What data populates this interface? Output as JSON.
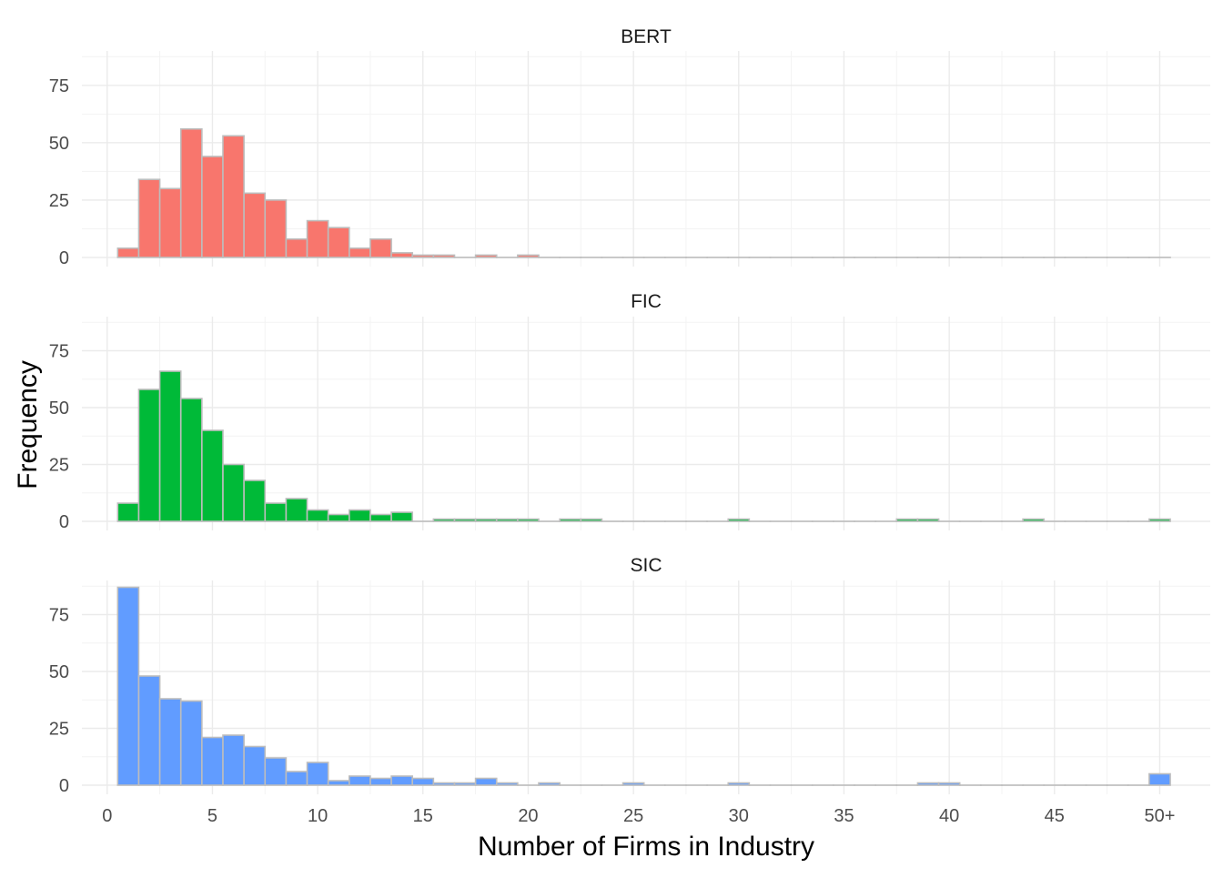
{
  "chart_data": {
    "type": "histogram",
    "xlabel": "Number of Firms in Industry",
    "ylabel": "Frequency",
    "x_ticks": [
      "0",
      "5",
      "10",
      "15",
      "20",
      "25",
      "30",
      "35",
      "40",
      "45",
      "50+"
    ],
    "x_tick_values": [
      0,
      5,
      10,
      15,
      20,
      25,
      30,
      35,
      40,
      45,
      50
    ],
    "xlim": [
      -1.2,
      52.4
    ],
    "y_ticks": [
      0,
      25,
      50,
      75
    ],
    "ylim": [
      -4,
      90
    ],
    "bin_centers": [
      1,
      2,
      3,
      4,
      5,
      6,
      7,
      8,
      9,
      10,
      11,
      12,
      13,
      14,
      15,
      16,
      17,
      18,
      19,
      20,
      21,
      22,
      23,
      24,
      25,
      26,
      27,
      28,
      29,
      30,
      31,
      32,
      33,
      34,
      35,
      36,
      37,
      38,
      39,
      40,
      41,
      42,
      43,
      44,
      45,
      46,
      47,
      48,
      49,
      50
    ],
    "bin_width": 1,
    "panels": [
      {
        "name": "BERT",
        "color": "#F8766D",
        "values": [
          4,
          34,
          30,
          56,
          44,
          53,
          28,
          25,
          8,
          16,
          13,
          4,
          8,
          2,
          1,
          1,
          0,
          1,
          0,
          1,
          0,
          0,
          0,
          0,
          0,
          0,
          0,
          0,
          0,
          0,
          0,
          0,
          0,
          0,
          0,
          0,
          0,
          0,
          0,
          0,
          0,
          0,
          0,
          0,
          0,
          0,
          0,
          0,
          0,
          0
        ]
      },
      {
        "name": "FIC",
        "color": "#00BA38",
        "values": [
          8,
          58,
          66,
          54,
          40,
          25,
          18,
          8,
          10,
          5,
          3,
          5,
          3,
          4,
          0,
          1,
          1,
          1,
          1,
          1,
          0,
          1,
          1,
          0,
          0,
          0,
          0,
          0,
          0,
          1,
          0,
          0,
          0,
          0,
          0,
          0,
          0,
          1,
          1,
          0,
          0,
          0,
          0,
          1,
          0,
          0,
          0,
          0,
          0,
          1
        ]
      },
      {
        "name": "SIC",
        "color": "#619CFF",
        "values": [
          87,
          48,
          38,
          37,
          21,
          22,
          17,
          12,
          6,
          10,
          2,
          4,
          3,
          4,
          3,
          1,
          1,
          3,
          1,
          0,
          1,
          0,
          0,
          0,
          1,
          0,
          0,
          0,
          0,
          1,
          0,
          0,
          0,
          0,
          0,
          0,
          0,
          0,
          1,
          1,
          0,
          0,
          0,
          0,
          0,
          0,
          0,
          0,
          0,
          5
        ]
      }
    ]
  }
}
